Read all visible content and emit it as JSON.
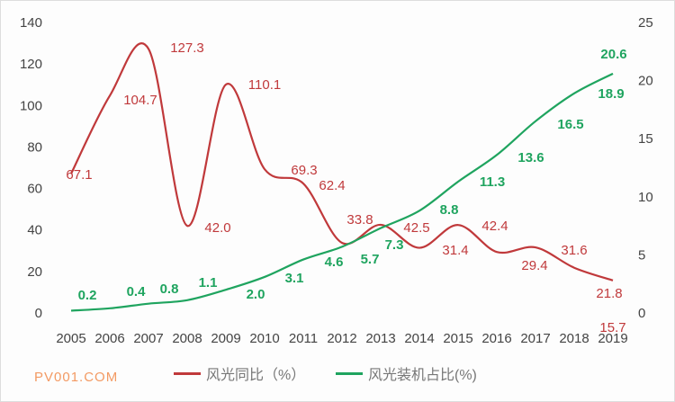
{
  "chart_data": {
    "type": "line",
    "title": "",
    "x": [
      "2005",
      "2006",
      "2007",
      "2008",
      "2009",
      "2010",
      "2011",
      "2012",
      "2013",
      "2014",
      "2015",
      "2016",
      "2017",
      "2018",
      "2019"
    ],
    "series": [
      {
        "name": "风光同比（%）",
        "axis": "left",
        "color": "#c0393b",
        "values": [
          67.1,
          104.7,
          127.3,
          42.0,
          110.1,
          69.3,
          62.4,
          33.8,
          42.5,
          31.4,
          42.4,
          29.4,
          31.6,
          21.8,
          15.7
        ],
        "labels": [
          "67.1",
          "104.7",
          "127.3",
          "42.0",
          "110.1",
          "69.3",
          "62.4",
          "33.8",
          "42.5",
          "31.4",
          "42.4",
          "29.4",
          "31.6",
          "21.8",
          "15.7"
        ]
      },
      {
        "name": "风光装机占比(%)",
        "axis": "right",
        "color": "#1fa45f",
        "values": [
          0.2,
          0.4,
          0.8,
          1.1,
          2.0,
          3.1,
          4.6,
          5.7,
          7.3,
          8.8,
          11.3,
          13.6,
          16.5,
          18.9,
          20.6
        ],
        "labels": [
          "0.2",
          "0.4",
          "0.8",
          "1.1",
          "2.0",
          "3.1",
          "4.6",
          "5.7",
          "7.3",
          "8.8",
          "11.3",
          "13.6",
          "16.5",
          "18.9",
          "20.6"
        ]
      }
    ],
    "ylim_left": [
      0,
      140
    ],
    "yticks_left": [
      "0",
      "20",
      "40",
      "60",
      "80",
      "100",
      "120",
      "140"
    ],
    "ylim_right": [
      0,
      25
    ],
    "yticks_right": [
      "0",
      "5",
      "10",
      "15",
      "20",
      "25"
    ],
    "grid": false,
    "legend": "bottom"
  },
  "watermark": "PV001.COM"
}
